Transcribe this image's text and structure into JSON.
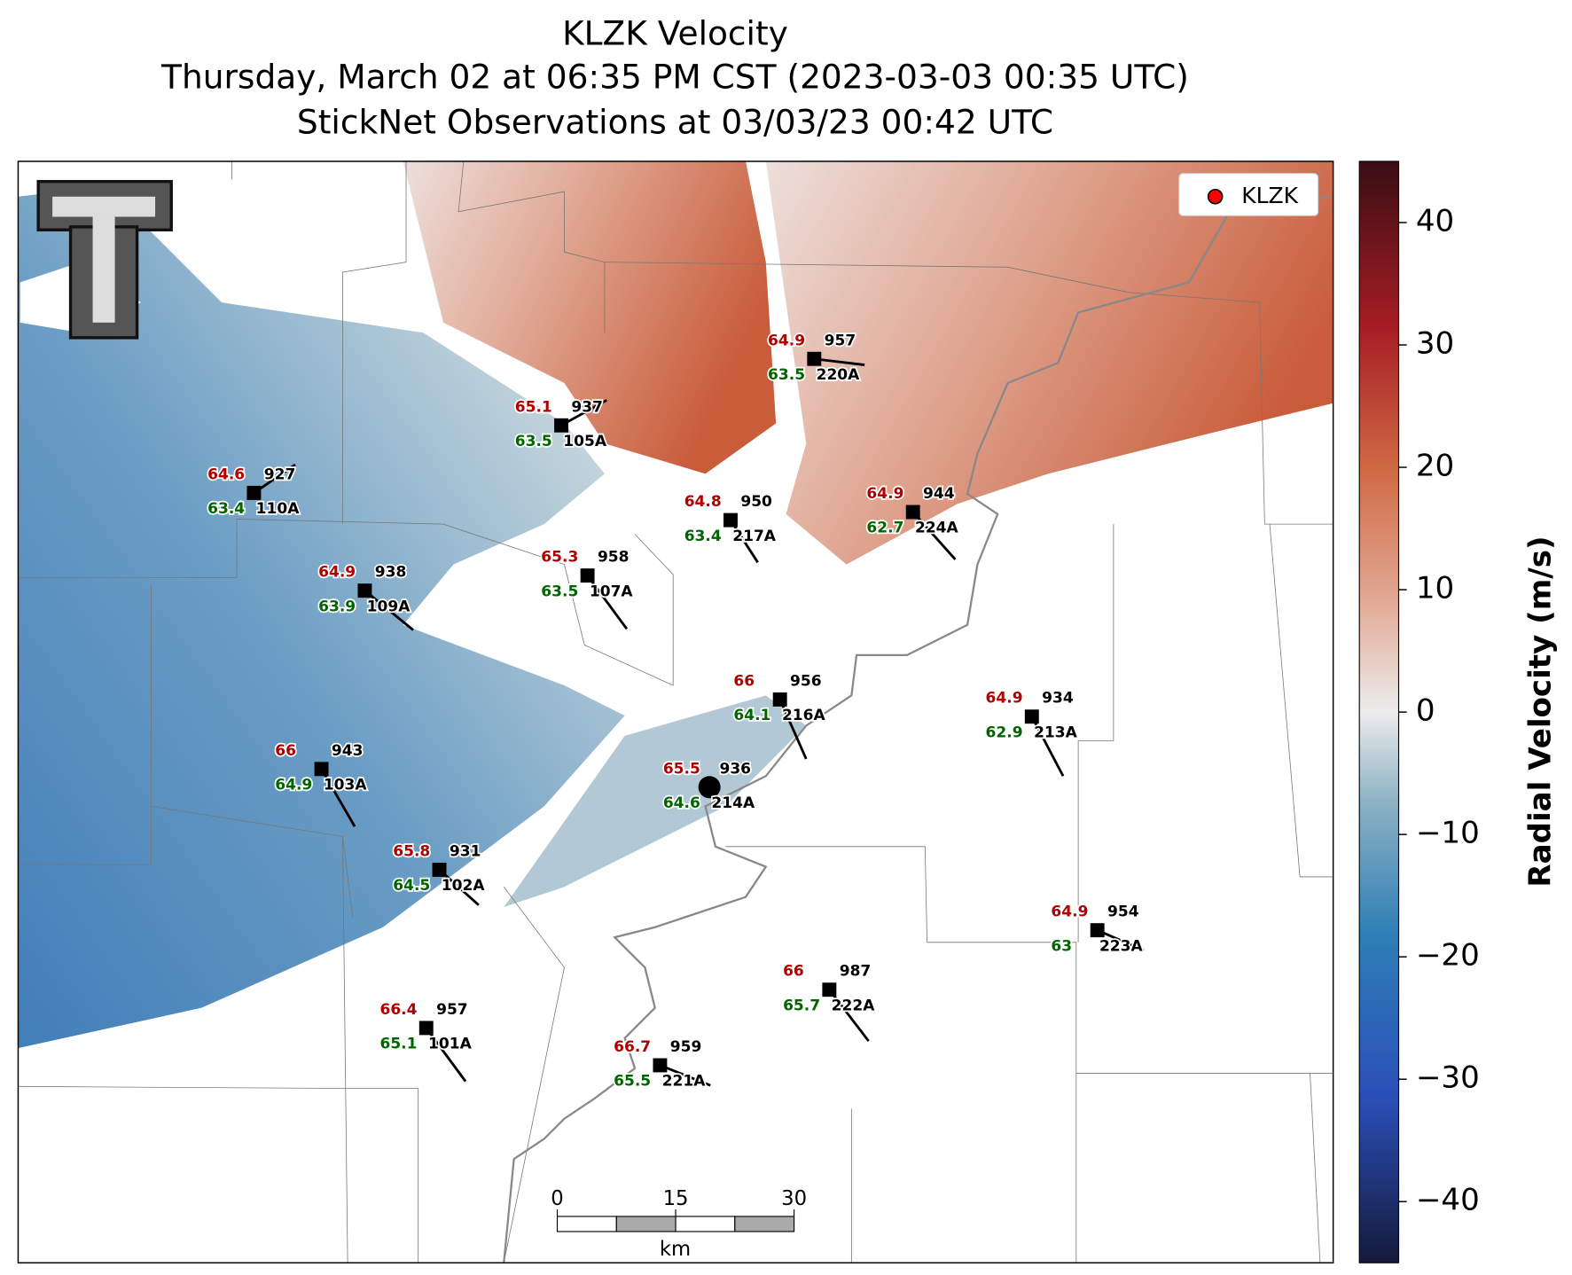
{
  "title": [
    "KLZK Velocity",
    "Thursday, March 02 at 06:35 PM CST (2023-03-03 00:35 UTC)",
    "StickNet Observations at 03/03/23 00:42 UTC"
  ],
  "legend": {
    "label": "KLZK",
    "color": "#ff0000"
  },
  "colorbar": {
    "label": "Radial Velocity (m/s)",
    "lim": [
      -45,
      45
    ],
    "ticks": [
      {
        "value": -40,
        "label": "−40"
      },
      {
        "value": -30,
        "label": "−30"
      },
      {
        "value": -20,
        "label": "−20"
      },
      {
        "value": -10,
        "label": "−10"
      },
      0,
      10,
      20,
      30,
      40
    ]
  },
  "scale_bar": {
    "unit": "km",
    "ticks": [
      0,
      15,
      30
    ]
  },
  "stations": [
    {
      "temperature": 64.9,
      "dewpoint": 63.5,
      "pressure": 957,
      "id": "220A"
    },
    {
      "temperature": 65.1,
      "dewpoint": 63.5,
      "pressure": 937,
      "id": "105A"
    },
    {
      "temperature": 64.6,
      "dewpoint": 63.4,
      "pressure": 927,
      "id": "110A"
    },
    {
      "temperature": 64.8,
      "dewpoint": 63.4,
      "pressure": 950,
      "id": "217A"
    },
    {
      "temperature": 64.9,
      "dewpoint": 62.7,
      "pressure": 944,
      "id": "224A"
    },
    {
      "temperature": 65.3,
      "dewpoint": 63.5,
      "pressure": 958,
      "id": "107A"
    },
    {
      "temperature": 64.9,
      "dewpoint": 63.9,
      "pressure": 938,
      "id": "109A"
    },
    {
      "temperature": 66.0,
      "dewpoint": 64.1,
      "pressure": 956,
      "id": "216A"
    },
    {
      "temperature": 64.9,
      "dewpoint": 62.9,
      "pressure": 934,
      "id": "213A"
    },
    {
      "temperature": 66.0,
      "dewpoint": 64.9,
      "pressure": 943,
      "id": "103A"
    },
    {
      "temperature": 65.5,
      "dewpoint": 64.6,
      "pressure": 936,
      "id": "214A"
    },
    {
      "temperature": 65.8,
      "dewpoint": 64.5,
      "pressure": 931,
      "id": "102A"
    },
    {
      "temperature": 64.9,
      "dewpoint": 63.0,
      "pressure": 954,
      "id": "223A"
    },
    {
      "temperature": 66.0,
      "dewpoint": 65.7,
      "pressure": 987,
      "id": "222A"
    },
    {
      "temperature": 66.4,
      "dewpoint": 65.1,
      "pressure": 957,
      "id": "101A"
    },
    {
      "temperature": 66.7,
      "dewpoint": 65.5,
      "pressure": 959,
      "id": "221A"
    }
  ]
}
